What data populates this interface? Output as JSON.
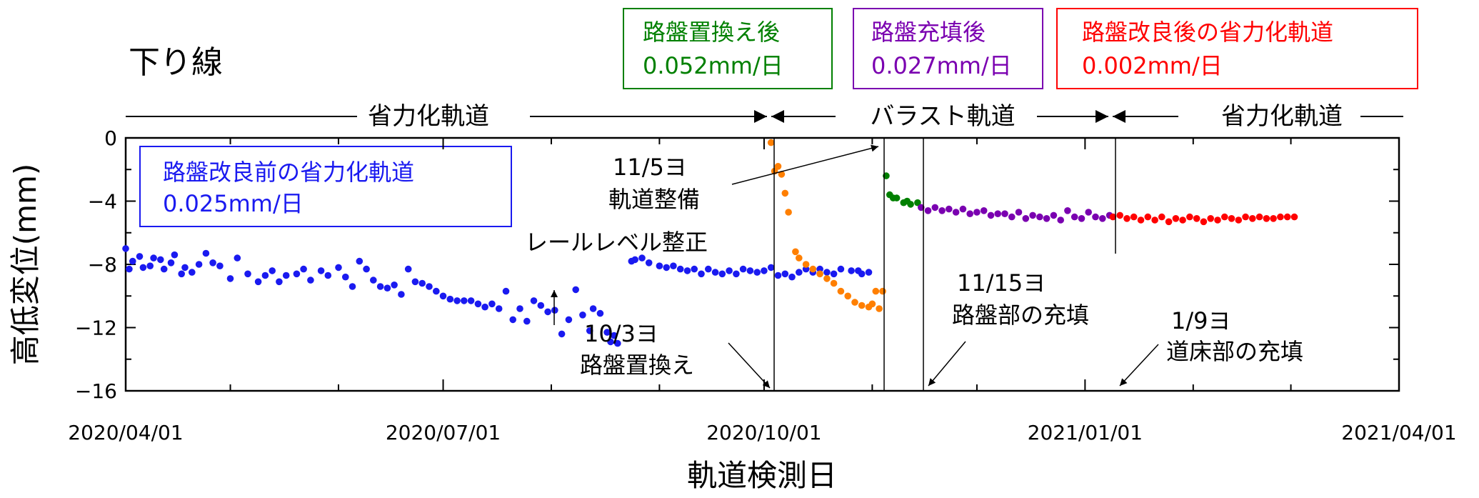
{
  "chart_data": {
    "type": "scatter",
    "title": "下り線",
    "xlabel": "軌道検測日",
    "ylabel": "高低変位(mm)",
    "xlim": [
      "2020/04/01",
      "2021/04/01"
    ],
    "ylim": [
      -16,
      0
    ],
    "x_ticks": [
      "2020/04/01",
      "2020/07/01",
      "2020/10/01",
      "2021/01/01",
      "2021/04/01"
    ],
    "y_ticks": [
      0,
      -4,
      -8,
      -12,
      -16
    ],
    "grid": false,
    "colors": {
      "before": "#1a1af0",
      "after_replacement": "#ff7f00",
      "after_replacement_stable": "#008000",
      "after_filling": "#7a00b0",
      "after_improvement": "#ff0000"
    },
    "track_type_labels": [
      "省力化軌道",
      "バラスト軌道",
      "省力化軌道"
    ],
    "boxes": [
      {
        "line1": "路盤改良前の省力化軌道",
        "line2": "0.025mm/日",
        "color": "#1a1af0"
      },
      {
        "line1": "路盤置換え後",
        "line2": "0.052mm/日",
        "color": "#008000"
      },
      {
        "line1": "路盤充填後",
        "line2": "0.027mm/日",
        "color": "#7a00b0"
      },
      {
        "line1": "路盤改良後の省力化軌道",
        "line2": "0.002mm/日",
        "color": "#ff0000"
      }
    ],
    "annotations": [
      {
        "line1": "10/3ヨ",
        "line2": "路盤置換え"
      },
      {
        "line1": "11/5ヨ",
        "line2": "軌道整備"
      },
      {
        "line1": "11/15ヨ",
        "line2": "路盤部の充填"
      },
      {
        "line1": "1/9ヨ",
        "line2": "道床部の充填"
      },
      {
        "line1": "レールレベル整正",
        "line2": ""
      }
    ],
    "series": [
      {
        "color_key": "before",
        "points": [
          [
            "2020/04/01",
            -7.0
          ],
          [
            "2020/04/02",
            -8.3
          ],
          [
            "2020/04/03",
            -7.8
          ],
          [
            "2020/04/05",
            -7.5
          ],
          [
            "2020/04/06",
            -8.2
          ],
          [
            "2020/04/08",
            -8.1
          ],
          [
            "2020/04/09",
            -7.6
          ],
          [
            "2020/04/11",
            -7.7
          ],
          [
            "2020/04/12",
            -8.3
          ],
          [
            "2020/04/14",
            -7.9
          ],
          [
            "2020/04/15",
            -7.4
          ],
          [
            "2020/04/17",
            -8.6
          ],
          [
            "2020/04/18",
            -8.2
          ],
          [
            "2020/04/20",
            -8.5
          ],
          [
            "2020/04/22",
            -8.0
          ],
          [
            "2020/04/24",
            -7.3
          ],
          [
            "2020/04/26",
            -7.9
          ],
          [
            "2020/04/28",
            -8.1
          ],
          [
            "2020/05/01",
            -8.9
          ],
          [
            "2020/05/03",
            -7.6
          ],
          [
            "2020/05/06",
            -8.6
          ],
          [
            "2020/05/09",
            -9.1
          ],
          [
            "2020/05/11",
            -8.7
          ],
          [
            "2020/05/13",
            -8.4
          ],
          [
            "2020/05/15",
            -9.1
          ],
          [
            "2020/05/17",
            -8.7
          ],
          [
            "2020/05/20",
            -8.6
          ],
          [
            "2020/05/22",
            -8.3
          ],
          [
            "2020/05/24",
            -9.0
          ],
          [
            "2020/05/27",
            -8.4
          ],
          [
            "2020/05/29",
            -8.7
          ],
          [
            "2020/06/01",
            -8.2
          ],
          [
            "2020/06/03",
            -8.8
          ],
          [
            "2020/06/05",
            -9.4
          ],
          [
            "2020/06/07",
            -7.8
          ],
          [
            "2020/06/09",
            -8.3
          ],
          [
            "2020/06/11",
            -9.0
          ],
          [
            "2020/06/13",
            -9.4
          ],
          [
            "2020/06/15",
            -9.5
          ],
          [
            "2020/06/17",
            -9.3
          ],
          [
            "2020/06/19",
            -9.9
          ],
          [
            "2020/06/21",
            -8.3
          ],
          [
            "2020/06/23",
            -9.1
          ],
          [
            "2020/06/25",
            -9.2
          ],
          [
            "2020/06/27",
            -9.4
          ],
          [
            "2020/06/29",
            -9.7
          ],
          [
            "2020/07/01",
            -10.0
          ],
          [
            "2020/07/03",
            -10.2
          ],
          [
            "2020/07/05",
            -10.3
          ],
          [
            "2020/07/07",
            -10.3
          ],
          [
            "2020/07/09",
            -10.3
          ],
          [
            "2020/07/11",
            -10.5
          ],
          [
            "2020/07/13",
            -10.7
          ],
          [
            "2020/07/15",
            -10.5
          ],
          [
            "2020/07/17",
            -10.8
          ],
          [
            "2020/07/19",
            -9.7
          ],
          [
            "2020/07/21",
            -11.5
          ],
          [
            "2020/07/23",
            -10.8
          ],
          [
            "2020/07/25",
            -11.6
          ],
          [
            "2020/07/27",
            -10.3
          ],
          [
            "2020/07/29",
            -10.6
          ],
          [
            "2020/07/31",
            -11.0
          ],
          [
            "2020/08/02",
            -10.9
          ],
          [
            "2020/08/04",
            -12.4
          ],
          [
            "2020/08/06",
            -11.5
          ],
          [
            "2020/08/08",
            -9.6
          ],
          [
            "2020/08/10",
            -11.2
          ],
          [
            "2020/08/12",
            -12.2
          ],
          [
            "2020/08/13",
            -10.8
          ],
          [
            "2020/08/15",
            -11.1
          ],
          [
            "2020/08/17",
            -12.3
          ],
          [
            "2020/08/18",
            -12.9
          ],
          [
            "2020/08/19",
            -12.5
          ],
          [
            "2020/08/20",
            -13.0
          ],
          [
            "2020/08/24",
            -7.8
          ],
          [
            "2020/08/25",
            -7.7
          ],
          [
            "2020/08/27",
            -7.6
          ],
          [
            "2020/08/29",
            -7.9
          ],
          [
            "2020/09/01",
            -8.1
          ],
          [
            "2020/09/03",
            -8.2
          ],
          [
            "2020/09/05",
            -8.1
          ],
          [
            "2020/09/07",
            -8.3
          ],
          [
            "2020/09/09",
            -8.4
          ],
          [
            "2020/09/11",
            -8.3
          ],
          [
            "2020/09/13",
            -8.6
          ],
          [
            "2020/09/15",
            -8.3
          ],
          [
            "2020/09/17",
            -8.5
          ],
          [
            "2020/09/19",
            -8.6
          ],
          [
            "2020/09/21",
            -8.4
          ],
          [
            "2020/09/23",
            -8.6
          ],
          [
            "2020/09/25",
            -8.3
          ],
          [
            "2020/09/27",
            -8.4
          ],
          [
            "2020/09/29",
            -8.5
          ],
          [
            "2020/10/01",
            -8.4
          ],
          [
            "2020/10/03",
            -8.2
          ],
          [
            "2020/10/05",
            -8.7
          ],
          [
            "2020/10/07",
            -8.6
          ],
          [
            "2020/10/09",
            -8.8
          ],
          [
            "2020/10/11",
            -8.5
          ],
          [
            "2020/10/13",
            -8.3
          ],
          [
            "2020/10/15",
            -8.5
          ],
          [
            "2020/10/17",
            -8.3
          ],
          [
            "2020/10/19",
            -8.5
          ],
          [
            "2020/10/21",
            -8.6
          ],
          [
            "2020/10/23",
            -8.3
          ],
          [
            "2020/10/26",
            -8.4
          ],
          [
            "2020/10/28",
            -8.4
          ],
          [
            "2020/10/29",
            -8.6
          ],
          [
            "2020/10/31",
            -8.5
          ]
        ]
      },
      {
        "color_key": "after_replacement",
        "points": [
          [
            "2020/10/03",
            -0.3
          ],
          [
            "2020/10/04",
            -2.1
          ],
          [
            "2020/10/05",
            -1.8
          ],
          [
            "2020/10/06",
            -2.3
          ],
          [
            "2020/10/07",
            -3.5
          ],
          [
            "2020/10/08",
            -4.7
          ],
          [
            "2020/10/10",
            -7.2
          ],
          [
            "2020/10/11",
            -7.6
          ],
          [
            "2020/10/13",
            -8.0
          ],
          [
            "2020/10/15",
            -8.3
          ],
          [
            "2020/10/17",
            -8.6
          ],
          [
            "2020/10/19",
            -8.9
          ],
          [
            "2020/10/21",
            -9.2
          ],
          [
            "2020/10/23",
            -9.7
          ],
          [
            "2020/10/25",
            -10.0
          ],
          [
            "2020/10/27",
            -10.4
          ],
          [
            "2020/10/29",
            -10.6
          ],
          [
            "2020/10/31",
            -10.7
          ],
          [
            "2020/11/01",
            -10.5
          ],
          [
            "2020/11/02",
            -9.7
          ],
          [
            "2020/11/03",
            -10.8
          ],
          [
            "2020/11/04",
            -9.7
          ]
        ]
      },
      {
        "color_key": "after_replacement_stable",
        "points": [
          [
            "2020/11/05",
            -2.4
          ],
          [
            "2020/11/06",
            -3.6
          ],
          [
            "2020/11/07",
            -3.8
          ],
          [
            "2020/11/08",
            -3.8
          ],
          [
            "2020/11/10",
            -4.1
          ],
          [
            "2020/11/11",
            -4.0
          ],
          [
            "2020/11/12",
            -4.2
          ],
          [
            "2020/11/14",
            -4.1
          ]
        ]
      },
      {
        "color_key": "after_filling",
        "points": [
          [
            "2020/11/15",
            -4.4
          ],
          [
            "2020/11/17",
            -4.6
          ],
          [
            "2020/11/19",
            -4.4
          ],
          [
            "2020/11/21",
            -4.6
          ],
          [
            "2020/11/23",
            -4.5
          ],
          [
            "2020/11/25",
            -4.7
          ],
          [
            "2020/11/27",
            -4.5
          ],
          [
            "2020/11/29",
            -4.8
          ],
          [
            "2020/12/01",
            -4.7
          ],
          [
            "2020/12/03",
            -4.6
          ],
          [
            "2020/12/05",
            -4.9
          ],
          [
            "2020/12/07",
            -4.8
          ],
          [
            "2020/12/09",
            -4.8
          ],
          [
            "2020/12/11",
            -5.0
          ],
          [
            "2020/12/13",
            -4.7
          ],
          [
            "2020/12/15",
            -5.1
          ],
          [
            "2020/12/17",
            -4.9
          ],
          [
            "2020/12/19",
            -5.0
          ],
          [
            "2020/12/21",
            -5.1
          ],
          [
            "2020/12/23",
            -4.9
          ],
          [
            "2020/12/25",
            -5.2
          ],
          [
            "2020/12/27",
            -4.6
          ],
          [
            "2020/12/29",
            -5.0
          ],
          [
            "2020/12/31",
            -5.1
          ],
          [
            "2021/01/02",
            -4.7
          ],
          [
            "2021/01/04",
            -5.0
          ],
          [
            "2021/01/06",
            -5.1
          ],
          [
            "2021/01/08",
            -4.9
          ]
        ]
      },
      {
        "color_key": "after_improvement",
        "points": [
          [
            "2021/01/09",
            -5.0
          ],
          [
            "2021/01/11",
            -4.9
          ],
          [
            "2021/01/13",
            -5.1
          ],
          [
            "2021/01/15",
            -5.0
          ],
          [
            "2021/01/17",
            -5.2
          ],
          [
            "2021/01/19",
            -5.0
          ],
          [
            "2021/01/21",
            -5.2
          ],
          [
            "2021/01/23",
            -5.0
          ],
          [
            "2021/01/25",
            -5.3
          ],
          [
            "2021/01/27",
            -5.1
          ],
          [
            "2021/01/29",
            -5.2
          ],
          [
            "2021/01/31",
            -5.0
          ],
          [
            "2021/02/02",
            -5.1
          ],
          [
            "2021/02/04",
            -5.3
          ],
          [
            "2021/02/06",
            -5.1
          ],
          [
            "2021/02/08",
            -5.2
          ],
          [
            "2021/02/10",
            -5.0
          ],
          [
            "2021/02/12",
            -5.1
          ],
          [
            "2021/02/14",
            -5.2
          ],
          [
            "2021/02/16",
            -5.0
          ],
          [
            "2021/02/18",
            -5.1
          ],
          [
            "2021/02/20",
            -5.0
          ],
          [
            "2021/02/22",
            -5.1
          ],
          [
            "2021/02/24",
            -5.1
          ],
          [
            "2021/02/26",
            -5.0
          ],
          [
            "2021/02/28",
            -5.0
          ],
          [
            "2021/03/02",
            -5.0
          ]
        ]
      }
    ]
  }
}
